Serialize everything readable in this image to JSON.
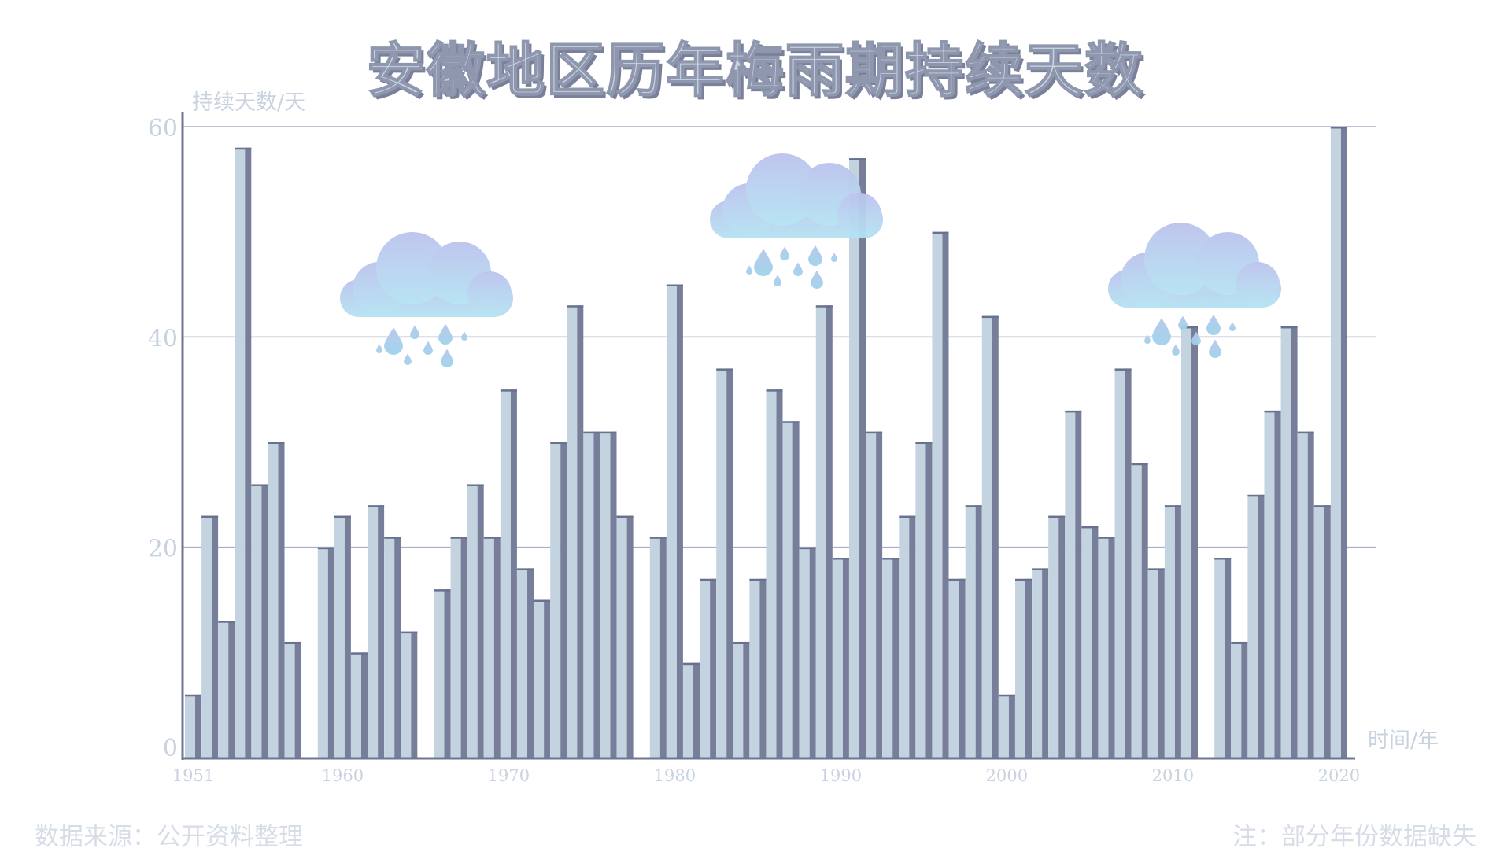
{
  "chart_data": {
    "type": "bar",
    "title": "安徽地区历年梅雨期持续天数",
    "ylabel": "持续天数/天",
    "xlabel": "时间/年",
    "ylim": [
      0,
      60
    ],
    "y_ticks": [
      "0",
      "20",
      "40",
      "60"
    ],
    "x_tick_labels": [
      "1951",
      "1960",
      "1970",
      "1980",
      "1990",
      "2000",
      "2010",
      "2020"
    ],
    "grid": true,
    "series": [
      {
        "x": [
          1951,
          1952,
          1953,
          1954,
          1955,
          1956,
          1957,
          1959,
          1960,
          1961,
          1962,
          1963,
          1964,
          1966,
          1967,
          1968,
          1969,
          1970,
          1971,
          1972,
          1973,
          1974,
          1975,
          1976,
          1977,
          1979,
          1980,
          1981,
          1982,
          1983,
          1984,
          1985,
          1986,
          1987,
          1988,
          1989,
          1990,
          1991,
          1992,
          1993,
          1994,
          1995,
          1996,
          1997,
          1998,
          1999,
          2000,
          2001,
          2002,
          2003,
          2004,
          2005,
          2006,
          2007,
          2008,
          2009,
          2010,
          2011,
          2013,
          2014,
          2015,
          2016,
          2017,
          2018,
          2019,
          2020
        ],
        "values": [
          6,
          23,
          13,
          58,
          26,
          30,
          11,
          20,
          23,
          10,
          24,
          21,
          12,
          16,
          21,
          26,
          21,
          35,
          18,
          15,
          30,
          43,
          31,
          31,
          23,
          21,
          45,
          9,
          17,
          37,
          11,
          17,
          35,
          32,
          20,
          43,
          19,
          57,
          31,
          19,
          23,
          30,
          50,
          17,
          24,
          42,
          6,
          17,
          18,
          23,
          33,
          22,
          21,
          37,
          28,
          18,
          24,
          41,
          19,
          11,
          25,
          33,
          41,
          31,
          24,
          60
        ]
      }
    ]
  },
  "footer": {
    "source": "数据来源：公开资料整理",
    "note": "注：部分年份数据缺失"
  }
}
